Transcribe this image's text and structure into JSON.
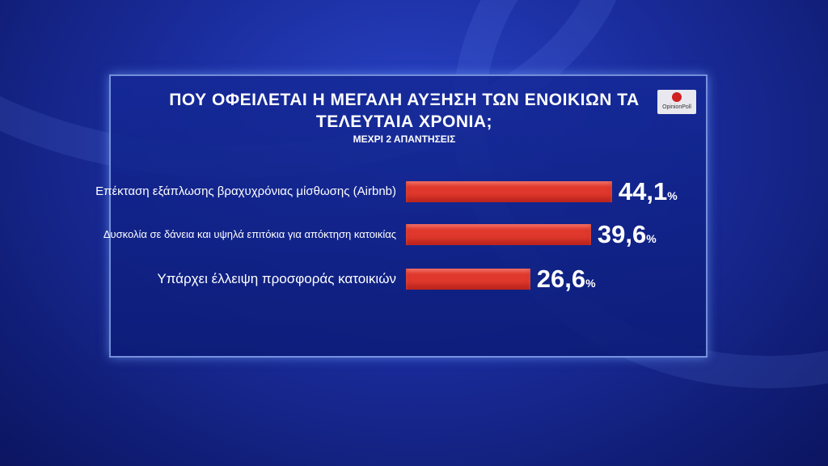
{
  "chart_data": {
    "type": "bar",
    "orientation": "horizontal",
    "title": "ΠΟΥ ΟΦΕΙΛΕΤΑΙ Η ΜΕΓΑΛΗ ΑΥΞΗΣΗ ΤΩΝ ΕΝΟΙΚΙΩΝ ΤΑ ΤΕΛΕΥΤΑΙΑ ΧΡΟΝΙΑ;",
    "subtitle": "ΜΕΧΡΙ 2 ΑΠΑΝΤΗΣΕΙΣ",
    "categories": [
      "Επέκταση εξάπλωσης βραχυχρόνιας μίσθωσης (Airbnb)",
      "Δυσκολία σε δάνεια και υψηλά επιτόκια για απόκτηση κατοικίας",
      "Υπάρχει έλλειψη προσφοράς κατοικιών"
    ],
    "values": [
      44.1,
      39.6,
      26.6
    ],
    "value_labels": [
      "44,1",
      "39,6",
      "26,6"
    ],
    "unit": "%",
    "color": "#e0382c"
  },
  "branding": {
    "logo": "OpinionPoll"
  }
}
